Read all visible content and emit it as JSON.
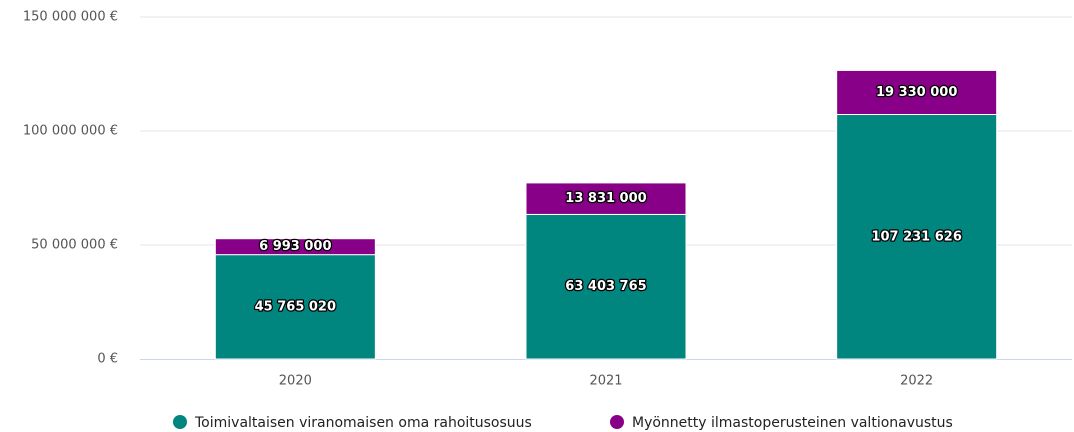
{
  "chart_data": {
    "type": "stacked_bar",
    "categories": [
      "2020",
      "2021",
      "2022"
    ],
    "series": [
      {
        "name": "Toimivaltaisen viranomaisen oma rahoitusosuus",
        "color": "#00857f",
        "values": [
          45765020,
          63403765,
          107231626
        ],
        "value_labels": [
          "45 765 020",
          "63 403 765",
          "107 231 626"
        ]
      },
      {
        "name": "Myönnetty ilmastoperusteinen valtionavustus",
        "color": "#880088",
        "values": [
          6993000,
          13831000,
          19330000
        ],
        "value_labels": [
          "6 993 000",
          "13 831 000",
          "19 330 000"
        ]
      }
    ],
    "ylim": [
      0,
      150000000
    ],
    "yticks": [
      {
        "value": 0,
        "label": "0 €"
      },
      {
        "value": 50000000,
        "label": "50 000 000 €"
      },
      {
        "value": 100000000,
        "label": "100 000 000 €"
      },
      {
        "value": 150000000,
        "label": "150 000 000 €"
      }
    ],
    "grid": true,
    "legend": "bottom"
  }
}
